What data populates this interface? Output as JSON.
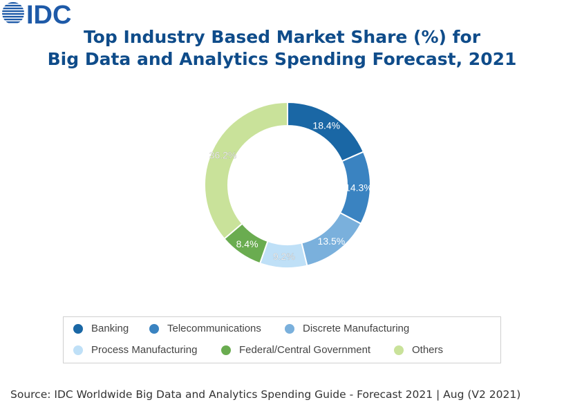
{
  "logo": {
    "text": "IDC",
    "color": "#1e5aa8"
  },
  "chart_data": {
    "type": "pie",
    "title_lines": [
      "Top Industry Based Market Share (%) for",
      "Big Data and Analytics Spending Forecast, 2021"
    ],
    "donut": true,
    "unit": "%",
    "slices": [
      {
        "label": "Banking",
        "value": 18.4,
        "display": "18.4%",
        "color": "#1a67a5"
      },
      {
        "label": "Telecommunications",
        "value": 14.3,
        "display": "14.3%",
        "color": "#3a83c1"
      },
      {
        "label": "Discrete Manufacturing",
        "value": 13.5,
        "display": "13.5%",
        "color": "#7ab0dc"
      },
      {
        "label": "Process Manufacturing",
        "value": 9.2,
        "display": "9.2%",
        "color": "#bfe0f7"
      },
      {
        "label": "Federal/Central Government",
        "value": 8.4,
        "display": "8.4%",
        "color": "#6aac50"
      },
      {
        "label": "Others",
        "value": 36.2,
        "display": "36.2%",
        "color": "#c9e29a"
      }
    ],
    "start_angle_deg": 90,
    "legend_position": "bottom"
  },
  "source": "Source: IDC Worldwide Big Data and Analytics Spending Guide - Forecast 2021 | Aug (V2 2021)"
}
